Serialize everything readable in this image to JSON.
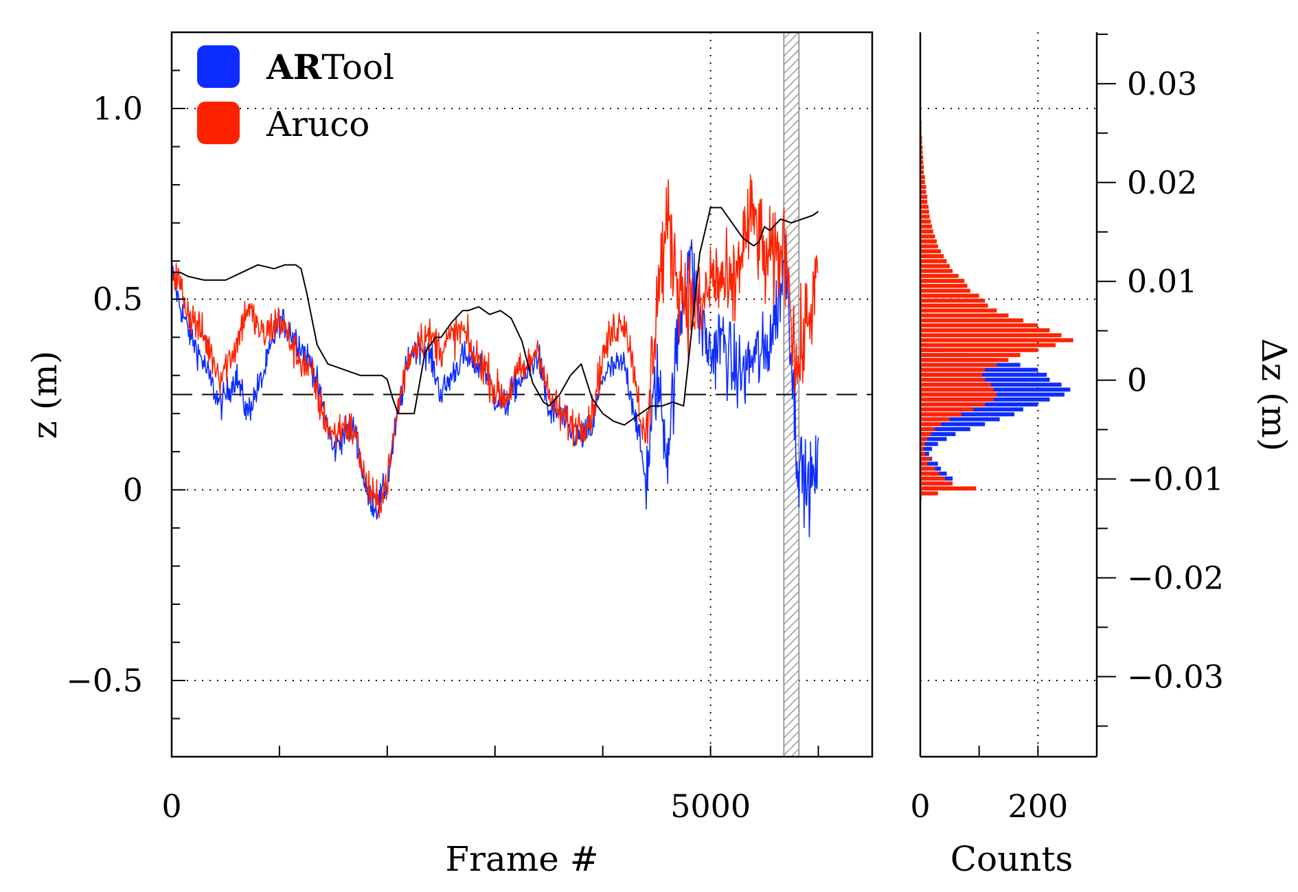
{
  "colors": {
    "artool": "#0d2cff",
    "aruco": "#ff2200",
    "mean": "#000000",
    "axis": "#000000",
    "grid": "#000000",
    "hatch": "#9a9a9a"
  },
  "legend": {
    "items": [
      {
        "bold": "AR",
        "rest": "Tool",
        "color_key": "artool"
      },
      {
        "bold": "",
        "rest": "Aruco",
        "color_key": "aruco"
      }
    ]
  },
  "chart_data": [
    {
      "type": "line",
      "xlabel": "Frame #",
      "ylabel": "z (m)",
      "xlim": [
        0,
        6500
      ],
      "ylim": [
        -0.7,
        1.2
      ],
      "xticks_labeled": [
        0,
        5000
      ],
      "xticks_minor": [
        1000,
        2000,
        3000,
        4000,
        6000
      ],
      "yticks_labeled": [
        1.0,
        0.5,
        0,
        -0.5
      ],
      "ytick_labels": [
        "1.0",
        "0.5",
        "0",
        "−0.5"
      ],
      "xtick_labels": [
        "0",
        "5000"
      ],
      "grid": "dotted at z = 1.0, 0.5, 0, −0.5 and frame 5000",
      "reference_line": {
        "style": "dashed",
        "z": 0.25
      },
      "shaded_region": {
        "x": [
          5680,
          5820
        ],
        "style": "hatched"
      },
      "legend_position": "top-left",
      "series": [
        {
          "name": "ARTool",
          "color_key": "artool",
          "noise": 0.04,
          "x": [
            0,
            60,
            150,
            300,
            450,
            600,
            700,
            850,
            1000,
            1150,
            1300,
            1400,
            1500,
            1600,
            1700,
            1800,
            1900,
            2000,
            2100,
            2200,
            2300,
            2400,
            2500,
            2600,
            2700,
            2800,
            2900,
            3000,
            3100,
            3200,
            3300,
            3400,
            3500,
            3600,
            3700,
            3800,
            3900,
            4000,
            4100,
            4200,
            4300,
            4400,
            4500,
            4600,
            4700,
            4800,
            4900,
            5000,
            5100,
            5200,
            5300,
            5400,
            5500,
            5600,
            5700,
            5800,
            5900,
            6000
          ],
          "y": [
            0.58,
            0.5,
            0.42,
            0.33,
            0.22,
            0.3,
            0.2,
            0.3,
            0.45,
            0.4,
            0.33,
            0.22,
            0.1,
            0.15,
            0.16,
            0.0,
            -0.05,
            0.02,
            0.2,
            0.35,
            0.38,
            0.35,
            0.25,
            0.3,
            0.35,
            0.33,
            0.32,
            0.24,
            0.22,
            0.28,
            0.3,
            0.36,
            0.2,
            0.2,
            0.15,
            0.14,
            0.16,
            0.3,
            0.32,
            0.33,
            0.2,
            0.02,
            0.3,
            0.1,
            0.4,
            0.62,
            0.45,
            0.35,
            0.4,
            0.32,
            0.3,
            0.35,
            0.35,
            0.45,
            0.62,
            0.1,
            0.0,
            0.05
          ]
        },
        {
          "name": "Aruco",
          "color_key": "aruco",
          "noise": 0.05,
          "x": [
            0,
            60,
            150,
            300,
            450,
            600,
            700,
            850,
            1000,
            1150,
            1300,
            1400,
            1500,
            1600,
            1700,
            1800,
            1900,
            2000,
            2100,
            2200,
            2300,
            2400,
            2500,
            2600,
            2700,
            2800,
            2900,
            3000,
            3100,
            3200,
            3300,
            3400,
            3500,
            3600,
            3700,
            3800,
            3900,
            4000,
            4100,
            4200,
            4300,
            4400,
            4500,
            4600,
            4700,
            4800,
            4900,
            5000,
            5100,
            5200,
            5300,
            5400,
            5500,
            5600,
            5700,
            5800,
            5900,
            6000
          ],
          "y": [
            0.58,
            0.55,
            0.47,
            0.4,
            0.3,
            0.38,
            0.48,
            0.4,
            0.45,
            0.36,
            0.3,
            0.2,
            0.14,
            0.17,
            0.15,
            0.02,
            -0.04,
            0.02,
            0.22,
            0.35,
            0.4,
            0.4,
            0.37,
            0.4,
            0.42,
            0.35,
            0.33,
            0.26,
            0.24,
            0.3,
            0.32,
            0.38,
            0.24,
            0.2,
            0.17,
            0.17,
            0.2,
            0.35,
            0.42,
            0.45,
            0.3,
            0.1,
            0.5,
            0.7,
            0.55,
            0.5,
            0.45,
            0.55,
            0.55,
            0.5,
            0.65,
            0.72,
            0.6,
            0.6,
            0.65,
            0.3,
            0.45,
            0.55
          ]
        },
        {
          "name": "",
          "color_key": "mean",
          "noise": 0,
          "x": [
            0,
            80,
            150,
            300,
            500,
            650,
            800,
            950,
            1050,
            1150,
            1200,
            1250,
            1350,
            1450,
            1550,
            1650,
            1750,
            1850,
            1950,
            2000,
            2050,
            2100,
            2150,
            2250,
            2350,
            2450,
            2500,
            2600,
            2700,
            2750,
            2850,
            2950,
            3050,
            3150,
            3250,
            3350,
            3450,
            3500,
            3600,
            3700,
            3800,
            3900,
            4000,
            4100,
            4200,
            4300,
            4400,
            4450,
            4500,
            4550,
            4650,
            4750,
            4800,
            4900,
            5000,
            5100,
            5200,
            5300,
            5400,
            5450,
            5500,
            5550,
            5650,
            5750,
            5850,
            5950,
            6000
          ],
          "y": [
            0.57,
            0.57,
            0.56,
            0.55,
            0.55,
            0.57,
            0.59,
            0.58,
            0.59,
            0.59,
            0.58,
            0.52,
            0.38,
            0.33,
            0.32,
            0.31,
            0.3,
            0.3,
            0.3,
            0.29,
            0.24,
            0.2,
            0.2,
            0.2,
            0.36,
            0.4,
            0.4,
            0.44,
            0.47,
            0.47,
            0.48,
            0.46,
            0.47,
            0.45,
            0.39,
            0.28,
            0.23,
            0.22,
            0.25,
            0.3,
            0.33,
            0.24,
            0.2,
            0.18,
            0.17,
            0.19,
            0.21,
            0.22,
            0.22,
            0.22,
            0.23,
            0.22,
            0.35,
            0.62,
            0.74,
            0.74,
            0.7,
            0.66,
            0.64,
            0.65,
            0.69,
            0.68,
            0.71,
            0.7,
            0.71,
            0.72,
            0.73
          ]
        }
      ]
    },
    {
      "type": "bar",
      "orientation": "horizontal",
      "xlabel": "Counts",
      "ylabel": "Δz (m)",
      "xlim": [
        0,
        300
      ],
      "ylim": [
        -0.0381,
        0.0352
      ],
      "xticks_labeled": [
        0,
        200
      ],
      "xticks_minor": [
        100,
        300
      ],
      "xtick_labels": [
        "0",
        "200"
      ],
      "yticks_labeled": [
        0.03,
        0.02,
        0.01,
        0,
        -0.01,
        -0.02,
        -0.03
      ],
      "ytick_labels": [
        "0.03",
        "0.02",
        "0.01",
        "0",
        "−0.01",
        "−0.02",
        "−0.03"
      ],
      "y_axis_side": "right",
      "grid": "dotted at the same heights as the main panel's dotted lines and at count 200",
      "bin_width": 0.0005,
      "series": [
        {
          "name": "ARTool",
          "color_key": "artool",
          "bin_centers": [
            -0.012,
            -0.0115,
            -0.011,
            -0.0105,
            -0.01,
            -0.0095,
            -0.009,
            -0.0085,
            -0.008,
            -0.0075,
            -0.007,
            -0.0065,
            -0.006,
            -0.0055,
            -0.005,
            -0.0045,
            -0.004,
            -0.0035,
            -0.003,
            -0.0025,
            -0.002,
            -0.0015,
            -0.001,
            -0.0005,
            0.0,
            0.0005,
            0.001,
            0.0015,
            0.002,
            0.0025,
            0.003
          ],
          "counts": [
            2,
            10,
            28,
            40,
            55,
            45,
            35,
            30,
            20,
            15,
            20,
            30,
            45,
            60,
            85,
            110,
            135,
            160,
            175,
            200,
            220,
            245,
            255,
            240,
            220,
            215,
            200,
            170,
            120,
            80,
            40
          ]
        },
        {
          "name": "Aruco",
          "color_key": "aruco",
          "bin_centers": [
            -0.0115,
            -0.011,
            -0.0105,
            -0.01,
            -0.0095,
            -0.009,
            -0.0085,
            -0.008,
            -0.0075,
            -0.007,
            -0.0065,
            -0.006,
            -0.0055,
            -0.005,
            -0.0045,
            -0.004,
            -0.0035,
            -0.003,
            -0.0025,
            -0.002,
            -0.0015,
            -0.001,
            -0.0005,
            0.0,
            0.0005,
            0.001,
            0.0015,
            0.002,
            0.0025,
            0.003,
            0.0035,
            0.004,
            0.0045,
            0.005,
            0.0055,
            0.006,
            0.0065,
            0.007,
            0.0075,
            0.008,
            0.0085,
            0.009,
            0.0095,
            0.01,
            0.0105,
            0.011,
            0.0115,
            0.012,
            0.0125,
            0.013,
            0.0135,
            0.014,
            0.0145,
            0.015,
            0.0155,
            0.016,
            0.0165,
            0.017,
            0.0175,
            0.018,
            0.0185,
            0.019,
            0.0195,
            0.02,
            0.0205,
            0.021,
            0.0215,
            0.022,
            0.0225,
            0.023,
            0.0235,
            0.024,
            0.0245,
            0.025,
            0.0255,
            0.026,
            0.0265,
            0.027,
            0.0275
          ],
          "counts": [
            30,
            95,
            55,
            42,
            32,
            25,
            12,
            18,
            8,
            6,
            8,
            12,
            18,
            25,
            35,
            50,
            70,
            90,
            110,
            125,
            130,
            125,
            120,
            110,
            105,
            110,
            130,
            150,
            170,
            200,
            230,
            260,
            240,
            220,
            200,
            175,
            150,
            130,
            115,
            110,
            100,
            85,
            80,
            75,
            65,
            55,
            50,
            45,
            40,
            35,
            30,
            28,
            25,
            22,
            20,
            18,
            16,
            15,
            14,
            12,
            12,
            10,
            10,
            8,
            8,
            6,
            6,
            5,
            5,
            4,
            4,
            3,
            3,
            2,
            2,
            2,
            1,
            1,
            1
          ]
        }
      ]
    }
  ]
}
